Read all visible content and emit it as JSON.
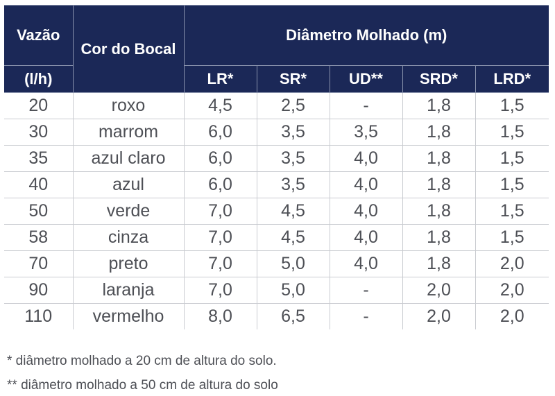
{
  "header": {
    "vazao_label": "Vazão",
    "vazao_unit": "(l/h)",
    "cor_label": "Cor do Bocal",
    "diametro_label": "Diâmetro Molhado (m)",
    "columns": [
      "LR*",
      "SR*",
      "UD**",
      "SRD*",
      "LRD*"
    ]
  },
  "rows": [
    {
      "vazao": "20",
      "cor": "roxo",
      "lr": "4,5",
      "sr": "2,5",
      "ud": "-",
      "srd": "1,8",
      "lrd": "1,5"
    },
    {
      "vazao": "30",
      "cor": "marrom",
      "lr": "6,0",
      "sr": "3,5",
      "ud": "3,5",
      "srd": "1,8",
      "lrd": "1,5"
    },
    {
      "vazao": "35",
      "cor": "azul claro",
      "lr": "6,0",
      "sr": "3,5",
      "ud": "4,0",
      "srd": "1,8",
      "lrd": "1,5"
    },
    {
      "vazao": "40",
      "cor": "azul",
      "lr": "6,0",
      "sr": "3,5",
      "ud": "4,0",
      "srd": "1,8",
      "lrd": "1,5"
    },
    {
      "vazao": "50",
      "cor": "verde",
      "lr": "7,0",
      "sr": "4,5",
      "ud": "4,0",
      "srd": "1,8",
      "lrd": "1,5"
    },
    {
      "vazao": "58",
      "cor": "cinza",
      "lr": "7,0",
      "sr": "4,5",
      "ud": "4,0",
      "srd": "1,8",
      "lrd": "1,5"
    },
    {
      "vazao": "70",
      "cor": "preto",
      "lr": "7,0",
      "sr": "5,0",
      "ud": "4,0",
      "srd": "1,8",
      "lrd": "2,0"
    },
    {
      "vazao": "90",
      "cor": "laranja",
      "lr": "7,0",
      "sr": "5,0",
      "ud": "-",
      "srd": "2,0",
      "lrd": "2,0"
    },
    {
      "vazao": "110",
      "cor": "vermelho",
      "lr": "8,0",
      "sr": "6,5",
      "ud": "-",
      "srd": "2,0",
      "lrd": "2,0"
    }
  ],
  "footnotes": [
    "* diâmetro molhado a 20 cm de altura do solo.",
    "** diâmetro molhado a 50 cm de altura do solo"
  ],
  "colors": {
    "header_bg": "#1b2857",
    "header_text": "#ffffff",
    "body_text": "#4d4f55",
    "grid_line": "#c9cbd0"
  }
}
